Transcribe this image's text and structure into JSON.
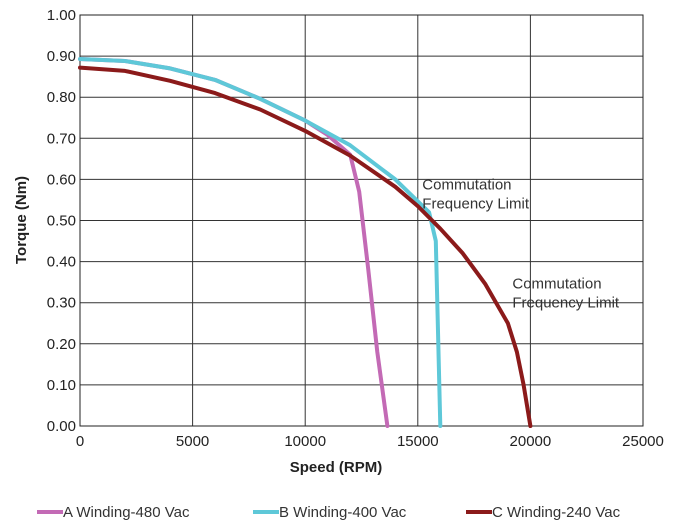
{
  "chart_data": {
    "type": "line",
    "xlabel": "Speed (RPM)",
    "ylabel": "Torque (Nm)",
    "xlim": [
      0,
      25000
    ],
    "ylim": [
      0,
      1.0
    ],
    "x_ticks": [
      "0",
      "5000",
      "10000",
      "15000",
      "20000",
      "25000"
    ],
    "y_ticks": [
      "0.00",
      "0.10",
      "0.20",
      "0.30",
      "0.40",
      "0.50",
      "0.60",
      "0.70",
      "0.80",
      "0.90",
      "1.00"
    ],
    "grid": true,
    "legend_position": "bottom",
    "series": [
      {
        "name": "A Winding-480 Vac",
        "color": "#c36ab5",
        "points": [
          [
            0,
            0.893
          ],
          [
            2000,
            0.888
          ],
          [
            4000,
            0.87
          ],
          [
            6000,
            0.842
          ],
          [
            8000,
            0.796
          ],
          [
            10000,
            0.743
          ],
          [
            11000,
            0.708
          ],
          [
            12000,
            0.66
          ],
          [
            12400,
            0.57
          ],
          [
            12800,
            0.38
          ],
          [
            13200,
            0.18
          ],
          [
            13650,
            0.0
          ]
        ]
      },
      {
        "name": "B Winding-400 Vac",
        "color": "#5ec8d8",
        "points": [
          [
            0,
            0.893
          ],
          [
            2000,
            0.888
          ],
          [
            4000,
            0.87
          ],
          [
            6000,
            0.842
          ],
          [
            8000,
            0.796
          ],
          [
            10000,
            0.743
          ],
          [
            12000,
            0.683
          ],
          [
            14000,
            0.6
          ],
          [
            15500,
            0.52
          ],
          [
            15800,
            0.45
          ],
          [
            16000,
            0.0
          ]
        ]
      },
      {
        "name": "C Winding-240 Vac",
        "color": "#8b1a1a",
        "points": [
          [
            0,
            0.872
          ],
          [
            2000,
            0.864
          ],
          [
            4000,
            0.84
          ],
          [
            6000,
            0.81
          ],
          [
            8000,
            0.77
          ],
          [
            10000,
            0.718
          ],
          [
            12000,
            0.658
          ],
          [
            14000,
            0.582
          ],
          [
            15000,
            0.535
          ],
          [
            16000,
            0.48
          ],
          [
            17000,
            0.42
          ],
          [
            18000,
            0.345
          ],
          [
            19000,
            0.25
          ],
          [
            19400,
            0.18
          ],
          [
            19700,
            0.1
          ],
          [
            20000,
            0.0
          ]
        ]
      }
    ],
    "annotations": [
      {
        "lines": [
          "Commutation",
          "Frequency Limit"
        ],
        "x": 15200,
        "y": 0.575
      },
      {
        "lines": [
          "Commutation",
          "Frequency Limit"
        ],
        "x": 19200,
        "y": 0.335
      }
    ]
  }
}
